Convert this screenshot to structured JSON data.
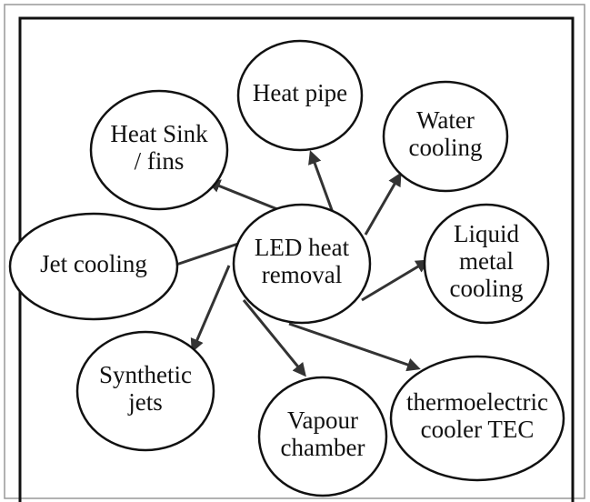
{
  "nodes": [
    {
      "lines": [
        "LED heat",
        "removal"
      ]
    },
    {
      "lines": [
        "Heat pipe"
      ]
    },
    {
      "lines": [
        "Heat Sink",
        "/ fins"
      ]
    },
    {
      "lines": [
        "Water",
        "cooling"
      ]
    },
    {
      "lines": [
        "Jet cooling"
      ]
    },
    {
      "lines": [
        "Liquid",
        "metal",
        "cooling"
      ]
    },
    {
      "lines": [
        "Synthetic",
        "jets"
      ]
    },
    {
      "lines": [
        "Vapour",
        "chamber"
      ]
    },
    {
      "lines": [
        "thermoelectric",
        "cooler TEC"
      ]
    }
  ]
}
